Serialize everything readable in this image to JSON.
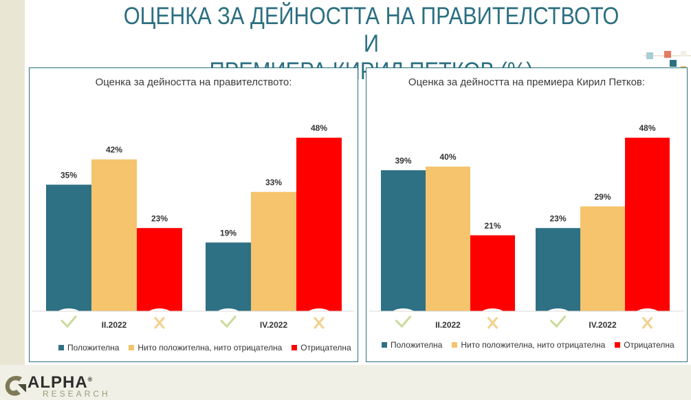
{
  "title": "ОЦЕНКА ЗА ДЕЙНОСТТА НА ПРАВИТЕЛСТВОТО И ПРЕМИЕРА КИРИЛ ПЕТКОВ (%)",
  "title_line1": "ОЦЕНКА ЗА ДЕЙНОСТТА НА ПРАВИТЕЛСТВОТО И",
  "title_line2": "ПРЕМИЕРА КИРИЛ ПЕТКОВ (%)",
  "logo": {
    "name": "ALPHA",
    "sub": "RESEARCH",
    "mark": "®"
  },
  "colors": {
    "positive": "#2e7084",
    "neutral": "#f5c46c",
    "negative": "#ff0000",
    "accent": "#2b6f80"
  },
  "icons": [
    "check-icon",
    "cross-icon"
  ],
  "legend": [
    "Положителна",
    "Нито положителна, нито отрицателна",
    "Отрицателна"
  ],
  "chart_data": [
    {
      "type": "bar",
      "title": "Оценка за дейността на правителството:",
      "categories": [
        "II.2022",
        "IV.2022"
      ],
      "series": [
        {
          "name": "Положителна",
          "values": [
            35,
            19
          ],
          "labels": [
            "35%",
            "19%"
          ]
        },
        {
          "name": "Нито положителна, нито отрицателна",
          "values": [
            42,
            33
          ],
          "labels": [
            "42%",
            "33%"
          ]
        },
        {
          "name": "Отрицателна",
          "values": [
            23,
            48
          ],
          "labels": [
            "23%",
            "48%"
          ]
        }
      ]
    },
    {
      "type": "bar",
      "title": "Оценка за дейността на премиера Кирил Петков:",
      "categories": [
        "II.2022",
        "IV.2022"
      ],
      "series": [
        {
          "name": "Положителна",
          "values": [
            39,
            23
          ],
          "labels": [
            "39%",
            "23%"
          ]
        },
        {
          "name": "Нито положителна, нито отрицателна",
          "values": [
            40,
            29
          ],
          "labels": [
            "40%",
            "29%"
          ]
        },
        {
          "name": "Отрицателна",
          "values": [
            21,
            48
          ],
          "labels": [
            "21%",
            "48%"
          ]
        }
      ]
    }
  ]
}
